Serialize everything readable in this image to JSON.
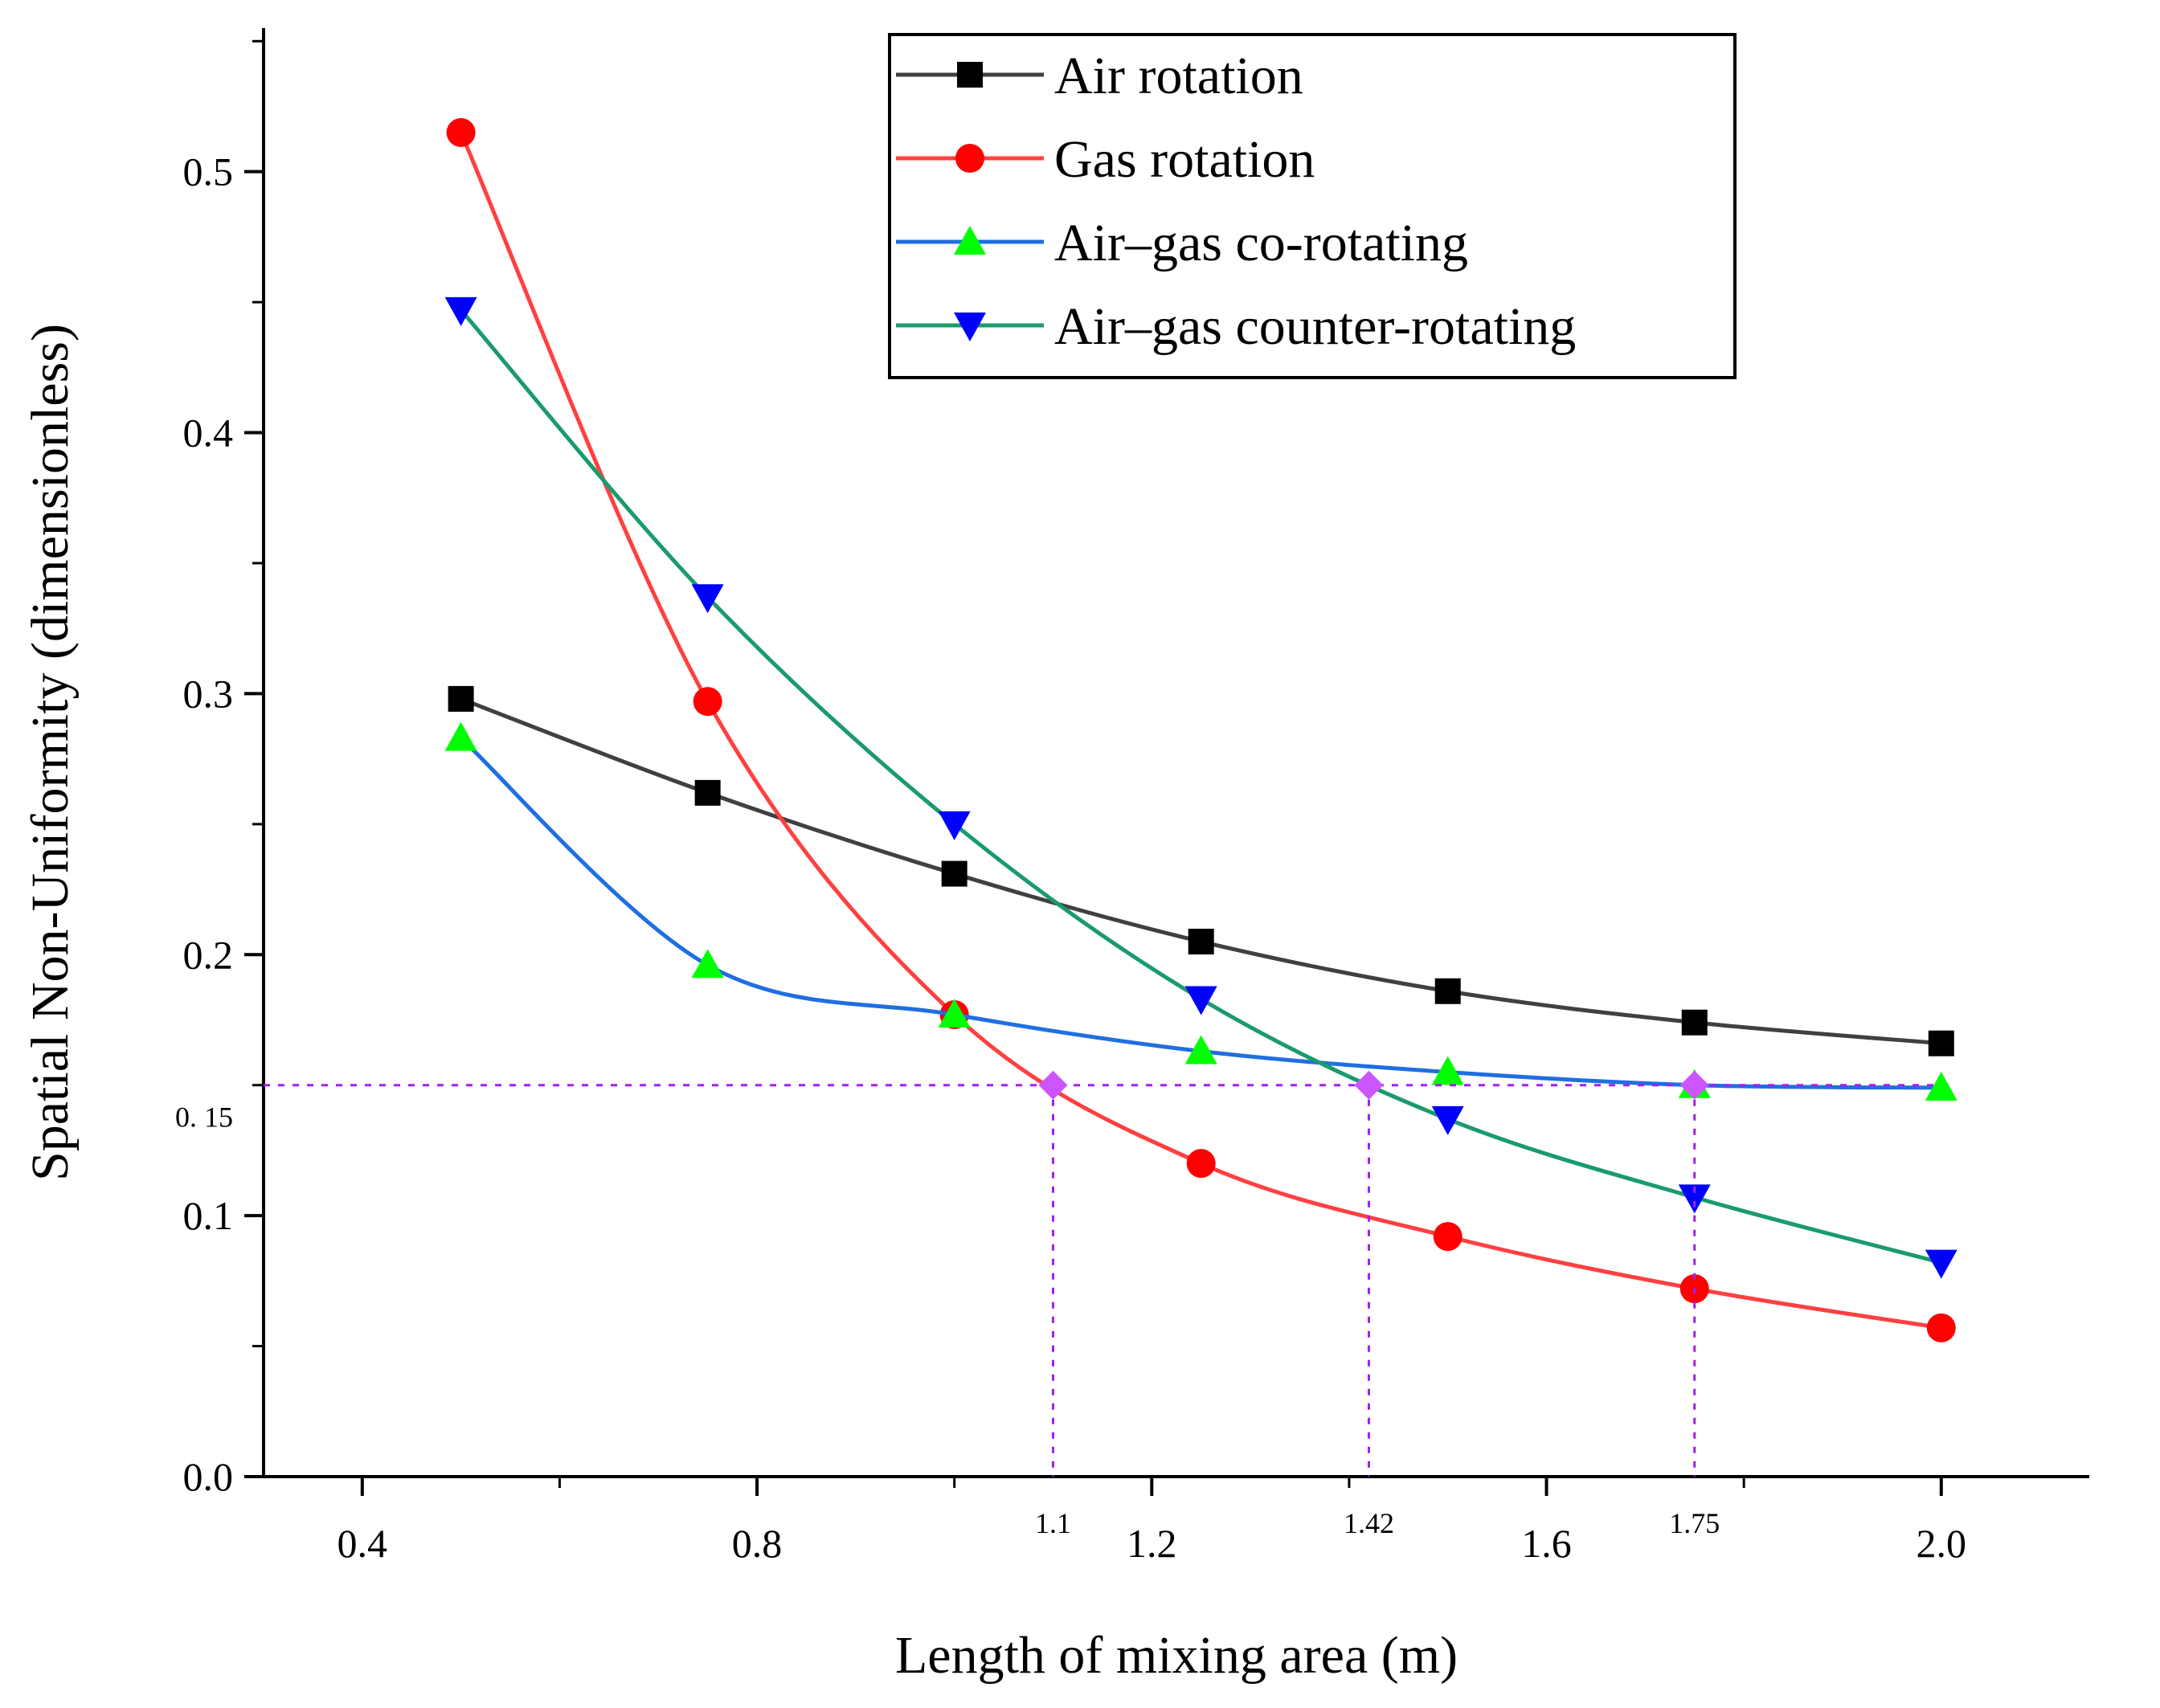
{
  "chart_data": {
    "type": "line",
    "title": "",
    "xlabel": "Length of mixing area (m)",
    "ylabel": "Spatial Non-Uniformity (dimensionless)",
    "xlim": [
      0.3,
      2.15
    ],
    "ylim": [
      0,
      0.555
    ],
    "x_ticks": [
      0.4,
      0.8,
      1.2,
      1.6,
      2.0
    ],
    "x_tick_labels": [
      "0.4",
      "0.8",
      "1.2",
      "1.6",
      "2.0"
    ],
    "y_ticks": [
      0.0,
      0.1,
      0.2,
      0.3,
      0.4,
      0.5
    ],
    "y_tick_labels": [
      "0.0",
      "0.1",
      "0.2",
      "0.3",
      "0.4",
      "0.5"
    ],
    "legend_position": "top-right",
    "grid": false,
    "x": [
      0.5,
      0.75,
      1.0,
      1.25,
      1.5,
      1.75,
      2.0
    ],
    "series": [
      {
        "name": "Air rotation",
        "color": "#404040",
        "marker_color": "#000000",
        "marker": "square",
        "values": [
          0.298,
          0.262,
          0.231,
          0.205,
          0.186,
          0.174,
          0.166
        ]
      },
      {
        "name": "Gas rotation",
        "color": "#ff4040",
        "marker_color": "#ff0000",
        "marker": "circle",
        "values": [
          0.515,
          0.297,
          0.177,
          0.12,
          0.092,
          0.072,
          0.057
        ]
      },
      {
        "name": "Air–gas co-rotating",
        "color": "#1f6fe0",
        "marker_color": "#00ff00",
        "marker": "triangle-up",
        "values": [
          0.283,
          0.196,
          0.177,
          0.163,
          0.155,
          0.15,
          0.149
        ]
      },
      {
        "name": "Air–gas counter-rotating",
        "color": "#1a9b6c",
        "marker_color": "#0000ff",
        "marker": "triangle-down",
        "values": [
          0.447,
          0.337,
          0.25,
          0.183,
          0.137,
          0.107,
          0.082
        ]
      }
    ],
    "annotations": {
      "threshold_y": 0.15,
      "threshold_label": "0. 15",
      "line_color": "#a020f0",
      "marker_color": "#cc55ff",
      "points": [
        {
          "x": 1.1,
          "label": "1.1"
        },
        {
          "x": 1.42,
          "label": "1.42"
        },
        {
          "x": 1.75,
          "label": "1.75"
        }
      ]
    }
  }
}
